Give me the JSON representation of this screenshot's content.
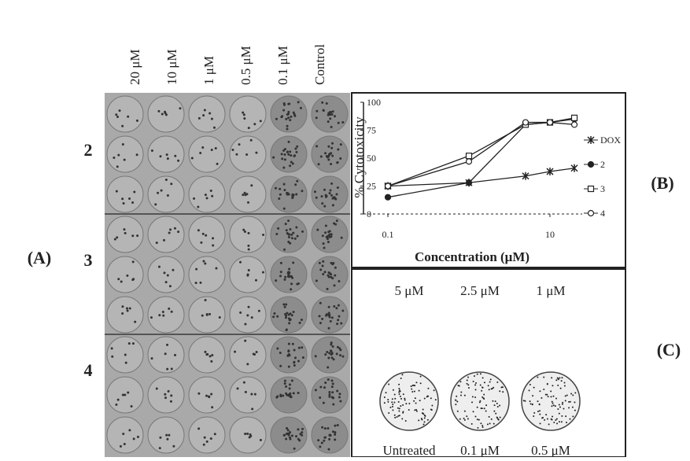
{
  "panel_a": {
    "label": "(A)",
    "columns": [
      "20 μM",
      "10 μM",
      "1 μM",
      "0.5 μM",
      "0.1 μM",
      "Control"
    ],
    "rows": [
      "2",
      "3",
      "4"
    ]
  },
  "panel_b": {
    "label": "(B)"
  },
  "chart_data": {
    "type": "line",
    "ylabel": "% Cytotoxicity",
    "xlabel": "Concentration (μM)",
    "xscale": "log",
    "x": [
      0.1,
      1,
      5,
      10,
      20
    ],
    "xlim": [
      0.05,
      25
    ],
    "xticks": [
      0.1,
      10
    ],
    "ylim": [
      0,
      100
    ],
    "yticks": [
      0,
      25,
      50,
      75,
      100
    ],
    "grid": false,
    "series": [
      {
        "name": "DOX",
        "color": "#222222",
        "marker": "x",
        "values": [
          25,
          28,
          34,
          38,
          41
        ]
      },
      {
        "name": "2",
        "color": "#222222",
        "marker": "filled-circle",
        "values": [
          15,
          28,
          80,
          82,
          85
        ]
      },
      {
        "name": "3",
        "color": "#222222",
        "marker": "open-square",
        "values": [
          25,
          52,
          80,
          82,
          86
        ]
      },
      {
        "name": "4",
        "color": "#222222",
        "marker": "open-circle",
        "values": [
          25,
          47,
          82,
          82,
          80
        ]
      }
    ]
  },
  "panel_c": {
    "label": "(C)",
    "top_labels": [
      "5 μM",
      "2.5 μM",
      "1 μM"
    ],
    "bottom_labels": [
      "Untreated",
      "0.1 μM",
      "0.5 μM"
    ]
  }
}
